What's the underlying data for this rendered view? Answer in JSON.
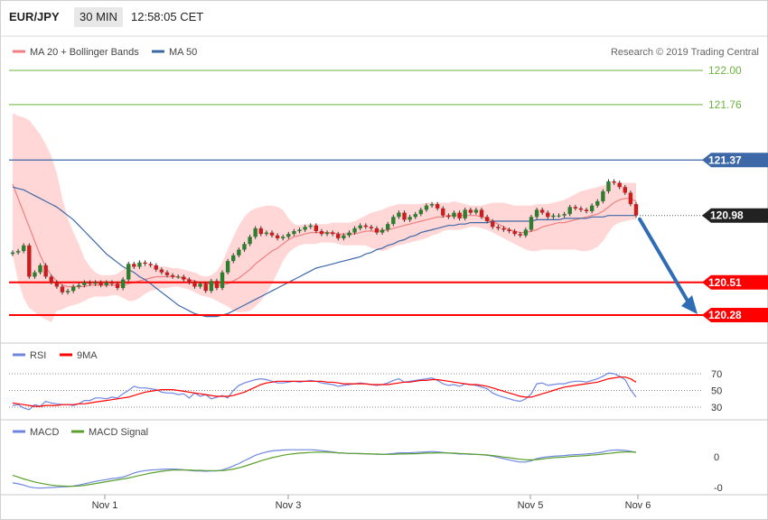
{
  "header": {
    "symbol": "EUR/JPY",
    "timeframe": "30 MIN",
    "time": "12:58:05 CET"
  },
  "legend": {
    "ma20": "MA 20 + Bollinger Bands",
    "ma50": "MA 50",
    "rsi": "RSI",
    "ma9": "9MA",
    "macd": "MACD",
    "macd_signal": "MACD Signal",
    "copyright": "Research © 2019 Trading Central"
  },
  "colors": {
    "bull": "#2f7d2f",
    "bear": "#c81e1e",
    "band": "#ffd0d0",
    "ma20": "#f07f7f",
    "ma50": "#3d68a8",
    "level_green": "#6db33f",
    "level_red": "#ff0000",
    "level_blue": "#3d68a8",
    "rsi": "#6f86e0",
    "ma9": "#ff0000",
    "macd": "#6f86e0",
    "macd_signal": "#5aa02c",
    "arrow": "#2e6db4"
  },
  "chart_data": [
    {
      "type": "candlestick",
      "panel": "price",
      "ylim": [
        120.19,
        122.05
      ],
      "y_ticks": [
        "122.00",
        "121.76"
      ],
      "x_ticks": [
        "Nov 1",
        "Nov 3",
        "Nov 5",
        "Nov 6"
      ],
      "last_price": "120.98",
      "levels": [
        {
          "label": "121.37",
          "value": 121.37,
          "color": "blue"
        },
        {
          "label": "120.51",
          "value": 120.51,
          "color": "red"
        },
        {
          "label": "120.28",
          "value": 120.28,
          "color": "red"
        }
      ],
      "forecast_arrow": {
        "from": 120.98,
        "to": 120.28
      },
      "close": [
        120.72,
        120.73,
        120.77,
        120.55,
        120.58,
        120.63,
        120.55,
        120.51,
        120.48,
        120.44,
        120.45,
        120.48,
        120.49,
        120.51,
        120.5,
        120.51,
        120.49,
        120.51,
        120.5,
        120.47,
        120.53,
        120.64,
        120.62,
        120.65,
        120.64,
        120.63,
        120.6,
        120.58,
        120.56,
        120.55,
        120.55,
        120.53,
        120.51,
        120.48,
        120.5,
        120.45,
        120.52,
        120.47,
        120.58,
        120.66,
        120.7,
        120.74,
        120.78,
        120.83,
        120.89,
        120.85,
        120.86,
        120.84,
        120.82,
        120.83,
        120.85,
        120.87,
        120.88,
        120.9,
        120.91,
        120.87,
        120.85,
        120.86,
        120.85,
        120.82,
        120.84,
        120.86,
        120.89,
        120.91,
        120.9,
        120.89,
        120.86,
        120.88,
        120.92,
        120.97,
        121.0,
        120.95,
        120.97,
        120.99,
        121.02,
        121.05,
        121.06,
        121.03,
        120.98,
        120.97,
        121.0,
        120.96,
        121.02,
        121.0,
        121.02,
        120.97,
        120.94,
        120.9,
        120.89,
        120.88,
        120.87,
        120.85,
        120.84,
        120.88,
        120.97,
        121.02,
        121.0,
        120.97,
        120.98,
        120.98,
        120.99,
        121.04,
        121.03,
        121.02,
        121.01,
        121.05,
        121.08,
        121.15,
        121.22,
        121.21,
        121.18,
        121.14,
        121.06,
        120.98
      ],
      "ma20": [
        121.2,
        121.1,
        121.0,
        120.9,
        120.8,
        120.7,
        120.62,
        120.56,
        120.52,
        120.49,
        120.48,
        120.48,
        120.48,
        120.48,
        120.49,
        120.49,
        120.49,
        120.49,
        120.49,
        120.49,
        120.49,
        120.5,
        120.51,
        120.52,
        120.53,
        120.54,
        120.55,
        120.55,
        120.55,
        120.55,
        120.55,
        120.54,
        120.53,
        120.52,
        120.51,
        120.5,
        120.5,
        120.49,
        120.49,
        120.5,
        120.52,
        120.54,
        120.57,
        120.6,
        120.64,
        120.67,
        120.7,
        120.73,
        120.75,
        120.78,
        120.81,
        120.83,
        120.84,
        120.85,
        120.86,
        120.86,
        120.86,
        120.86,
        120.86,
        120.85,
        120.85,
        120.85,
        120.85,
        120.86,
        120.87,
        120.87,
        120.87,
        120.87,
        120.88,
        120.89,
        120.9,
        120.91,
        120.92,
        120.93,
        120.94,
        120.95,
        120.96,
        120.97,
        120.97,
        120.98,
        120.98,
        120.98,
        120.98,
        120.98,
        120.98,
        120.97,
        120.96,
        120.94,
        120.92,
        120.9,
        120.88,
        120.87,
        120.86,
        120.86,
        120.87,
        120.88,
        120.9,
        120.91,
        120.92,
        120.93,
        120.93,
        120.94,
        120.95,
        120.96,
        120.97,
        120.98,
        120.99,
        121.01,
        121.04,
        121.07,
        121.09,
        121.1,
        121.1,
        121.08
      ],
      "upper_band": [
        121.7,
        121.68,
        121.67,
        121.65,
        121.6,
        121.55,
        121.48,
        121.4,
        121.28,
        121.1,
        120.96,
        120.86,
        120.78,
        120.68,
        120.62,
        120.58,
        120.56,
        120.56,
        120.56,
        120.57,
        120.6,
        120.62,
        120.63,
        120.63,
        120.63,
        120.63,
        120.62,
        120.62,
        120.62,
        120.61,
        120.61,
        120.6,
        120.59,
        120.58,
        120.56,
        120.55,
        120.56,
        120.59,
        120.65,
        120.74,
        120.83,
        120.91,
        120.97,
        121.01,
        121.03,
        121.04,
        121.05,
        121.05,
        121.04,
        121.02,
        120.96,
        120.92,
        120.91,
        120.92,
        120.92,
        120.92,
        120.92,
        120.92,
        120.93,
        120.93,
        120.93,
        120.93,
        120.94,
        120.96,
        120.98,
        121.0,
        121.01,
        121.02,
        121.04,
        121.05,
        121.06,
        121.06,
        121.06,
        121.06,
        121.06,
        121.07,
        121.07,
        121.07,
        121.07,
        121.07,
        121.08,
        121.07,
        121.06,
        121.05,
        121.05,
        121.05,
        121.06,
        121.07,
        121.07,
        121.07,
        121.06,
        121.05,
        121.05,
        121.05,
        121.05,
        121.06,
        121.06,
        121.06,
        121.07,
        121.08,
        121.09,
        121.11,
        121.13,
        121.15,
        121.16,
        121.17,
        121.18,
        121.19,
        121.2,
        121.21,
        121.21,
        121.21,
        121.21,
        121.21
      ],
      "lower_band": [
        120.7,
        120.52,
        120.4,
        120.33,
        120.3,
        120.27,
        120.25,
        120.23,
        120.31,
        120.32,
        120.34,
        120.35,
        120.36,
        120.38,
        120.4,
        120.41,
        120.41,
        120.41,
        120.42,
        120.42,
        120.4,
        120.38,
        120.38,
        120.4,
        120.43,
        120.45,
        120.46,
        120.47,
        120.47,
        120.48,
        120.48,
        120.47,
        120.46,
        120.44,
        120.42,
        120.41,
        120.4,
        120.38,
        120.36,
        120.34,
        120.31,
        120.3,
        120.3,
        120.31,
        120.34,
        120.38,
        120.43,
        120.5,
        120.58,
        120.66,
        120.72,
        120.75,
        120.77,
        120.78,
        120.78,
        120.78,
        120.79,
        120.79,
        120.79,
        120.78,
        120.77,
        120.77,
        120.77,
        120.77,
        120.77,
        120.75,
        120.74,
        120.73,
        120.74,
        120.76,
        120.77,
        120.78,
        120.79,
        120.8,
        120.81,
        120.82,
        120.84,
        120.85,
        120.87,
        120.88,
        120.88,
        120.88,
        120.89,
        120.9,
        120.9,
        120.89,
        120.88,
        120.86,
        120.84,
        120.82,
        120.8,
        120.78,
        120.76,
        120.74,
        120.73,
        120.73,
        120.74,
        120.74,
        120.74,
        120.74,
        120.74,
        120.74,
        120.74,
        120.73,
        120.73,
        120.74,
        120.76,
        120.8,
        120.86,
        120.91,
        120.93,
        120.94,
        120.95,
        120.95
      ],
      "ma50": [
        121.18,
        121.17,
        121.16,
        121.14,
        121.12,
        121.1,
        121.08,
        121.06,
        121.04,
        121.01,
        120.98,
        120.95,
        120.91,
        120.87,
        120.83,
        120.79,
        120.75,
        120.71,
        120.68,
        120.65,
        120.62,
        120.6,
        120.58,
        120.55,
        120.53,
        120.5,
        120.47,
        120.44,
        120.41,
        120.38,
        120.35,
        120.33,
        120.31,
        120.29,
        120.28,
        120.27,
        120.27,
        120.27,
        120.28,
        120.29,
        120.31,
        120.33,
        120.35,
        120.37,
        120.39,
        120.41,
        120.43,
        120.45,
        120.47,
        120.49,
        120.51,
        120.53,
        120.55,
        120.57,
        120.59,
        120.61,
        120.62,
        120.63,
        120.64,
        120.65,
        120.66,
        120.67,
        120.68,
        120.69,
        120.71,
        120.72,
        120.74,
        120.75,
        120.77,
        120.78,
        120.8,
        120.81,
        120.83,
        120.84,
        120.86,
        120.87,
        120.88,
        120.89,
        120.9,
        120.91,
        120.91,
        120.92,
        120.92,
        120.93,
        120.93,
        120.93,
        120.93,
        120.94,
        120.94,
        120.94,
        120.94,
        120.94,
        120.94,
        120.94,
        120.94,
        120.95,
        120.95,
        120.95,
        120.95,
        120.95,
        120.96,
        120.96,
        120.96,
        120.96,
        120.96,
        120.97,
        120.97,
        120.97,
        120.98,
        120.98,
        120.98,
        120.98,
        120.98,
        120.98
      ]
    },
    {
      "type": "line",
      "panel": "rsi",
      "ylim": [
        20,
        80
      ],
      "y_ticks": [
        "70",
        "50",
        "30"
      ],
      "series": [
        {
          "name": "RSI",
          "values": [
            32,
            33,
            29,
            27,
            33,
            31,
            37,
            35,
            34,
            33,
            33,
            32,
            34,
            38,
            38,
            41,
            41,
            40,
            42,
            41,
            46,
            50,
            55,
            53,
            53,
            52,
            51,
            48,
            47,
            47,
            45,
            46,
            41,
            47,
            43,
            45,
            40,
            42,
            44,
            41,
            50,
            56,
            59,
            61,
            63,
            64,
            63,
            61,
            59,
            59,
            60,
            61,
            60,
            61,
            62,
            61,
            59,
            58,
            57,
            55,
            56,
            57,
            58,
            59,
            58,
            57,
            56,
            57,
            59,
            62,
            64,
            60,
            61,
            62,
            63,
            64,
            65,
            62,
            58,
            56,
            57,
            55,
            58,
            57,
            56,
            54,
            52,
            47,
            44,
            42,
            40,
            38,
            37,
            40,
            46,
            58,
            59,
            56,
            57,
            58,
            58,
            60,
            61,
            61,
            60,
            62,
            64,
            67,
            71,
            70,
            67,
            63,
            51,
            42
          ]
        },
        {
          "name": "9MA",
          "values": [
            35,
            34,
            33,
            32,
            31,
            31,
            32,
            32,
            32,
            33,
            33,
            33,
            34,
            34,
            35,
            36,
            37,
            38,
            39,
            40,
            41,
            42,
            44,
            46,
            48,
            49,
            50,
            51,
            51,
            51,
            50,
            49,
            48,
            47,
            46,
            45,
            44,
            43,
            43,
            43,
            44,
            46,
            48,
            51,
            54,
            57,
            59,
            60,
            61,
            61,
            61,
            61,
            61,
            61,
            61,
            61,
            61,
            60,
            60,
            59,
            58,
            58,
            58,
            58,
            58,
            57,
            57,
            57,
            57,
            58,
            59,
            60,
            60,
            61,
            62,
            62,
            63,
            63,
            62,
            61,
            60,
            59,
            58,
            57,
            57,
            56,
            55,
            53,
            51,
            49,
            47,
            45,
            43,
            42,
            42,
            44,
            46,
            48,
            50,
            52,
            54,
            55,
            56,
            57,
            58,
            59,
            60,
            62,
            64,
            65,
            66,
            66,
            64,
            60
          ]
        }
      ]
    },
    {
      "type": "line",
      "panel": "macd",
      "ylim": [
        -0.12,
        0.1
      ],
      "y_ticks": [
        "0",
        "-0"
      ],
      "series": [
        {
          "name": "MACD",
          "values": [
            -0.085,
            -0.088,
            -0.092,
            -0.098,
            -0.101,
            -0.102,
            -0.101,
            -0.1,
            -0.099,
            -0.098,
            -0.097,
            -0.095,
            -0.092,
            -0.088,
            -0.084,
            -0.08,
            -0.077,
            -0.074,
            -0.071,
            -0.069,
            -0.066,
            -0.06,
            -0.053,
            -0.048,
            -0.045,
            -0.043,
            -0.042,
            -0.041,
            -0.04,
            -0.04,
            -0.041,
            -0.042,
            -0.044,
            -0.046,
            -0.046,
            -0.047,
            -0.046,
            -0.046,
            -0.043,
            -0.037,
            -0.03,
            -0.022,
            -0.013,
            -0.004,
            0.005,
            0.011,
            0.016,
            0.019,
            0.021,
            0.022,
            0.023,
            0.023,
            0.023,
            0.023,
            0.023,
            0.022,
            0.02,
            0.018,
            0.016,
            0.013,
            0.012,
            0.011,
            0.011,
            0.011,
            0.01,
            0.009,
            0.008,
            0.008,
            0.009,
            0.011,
            0.013,
            0.013,
            0.013,
            0.014,
            0.015,
            0.016,
            0.017,
            0.016,
            0.014,
            0.012,
            0.011,
            0.009,
            0.009,
            0.008,
            0.008,
            0.007,
            0.005,
            0.002,
            -0.002,
            -0.006,
            -0.01,
            -0.014,
            -0.017,
            -0.017,
            -0.013,
            -0.006,
            -0.002,
            0.0,
            0.002,
            0.003,
            0.004,
            0.006,
            0.007,
            0.008,
            0.009,
            0.011,
            0.013,
            0.016,
            0.02,
            0.022,
            0.022,
            0.021,
            0.018,
            0.014
          ]
        },
        {
          "name": "MACD Signal",
          "values": [
            -0.06,
            -0.066,
            -0.072,
            -0.077,
            -0.082,
            -0.086,
            -0.089,
            -0.092,
            -0.094,
            -0.095,
            -0.096,
            -0.096,
            -0.095,
            -0.093,
            -0.09,
            -0.087,
            -0.084,
            -0.081,
            -0.078,
            -0.075,
            -0.072,
            -0.069,
            -0.065,
            -0.061,
            -0.057,
            -0.053,
            -0.05,
            -0.047,
            -0.045,
            -0.043,
            -0.043,
            -0.043,
            -0.043,
            -0.044,
            -0.044,
            -0.045,
            -0.045,
            -0.045,
            -0.045,
            -0.043,
            -0.04,
            -0.036,
            -0.031,
            -0.025,
            -0.019,
            -0.013,
            -0.008,
            -0.003,
            0.001,
            0.005,
            0.008,
            0.01,
            0.012,
            0.013,
            0.014,
            0.015,
            0.015,
            0.015,
            0.014,
            0.013,
            0.012,
            0.011,
            0.011,
            0.01,
            0.01,
            0.009,
            0.009,
            0.008,
            0.008,
            0.008,
            0.009,
            0.009,
            0.01,
            0.01,
            0.011,
            0.012,
            0.012,
            0.013,
            0.013,
            0.012,
            0.012,
            0.011,
            0.01,
            0.009,
            0.008,
            0.007,
            0.006,
            0.004,
            0.002,
            -0.001,
            -0.003,
            -0.006,
            -0.008,
            -0.01,
            -0.01,
            -0.009,
            -0.007,
            -0.005,
            -0.003,
            -0.002,
            -0.001,
            0.001,
            0.002,
            0.003,
            0.004,
            0.006,
            0.007,
            0.009,
            0.011,
            0.013,
            0.015,
            0.016,
            0.016,
            0.015
          ]
        }
      ]
    }
  ]
}
